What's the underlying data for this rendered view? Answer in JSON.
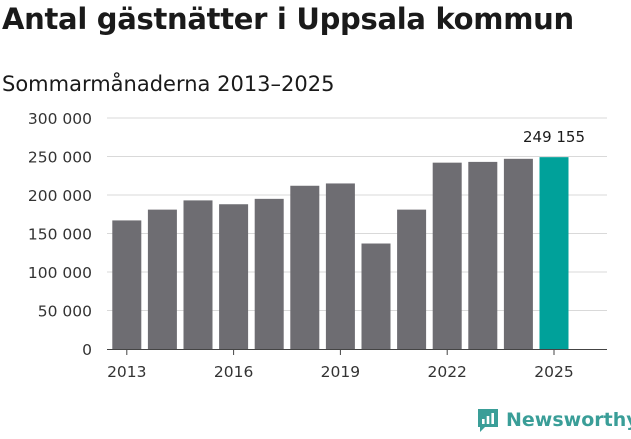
{
  "title": "Antal gästnätter i Uppsala kommun",
  "subtitle": "Sommarmånaderna 2013–2025",
  "brand": {
    "name": "Newsworthy",
    "color": "#3a9e98"
  },
  "chart_data": {
    "type": "bar",
    "categories": [
      "2013",
      "2014",
      "2015",
      "2016",
      "2017",
      "2018",
      "2019",
      "2020",
      "2021",
      "2022",
      "2023",
      "2024",
      "2025"
    ],
    "values": [
      167000,
      181000,
      193000,
      188000,
      195000,
      212000,
      215000,
      137000,
      181000,
      242000,
      243000,
      247000,
      249155
    ],
    "highlight_index": 12,
    "highlight_label": "249 155",
    "colors": {
      "bar": "#6e6d72",
      "highlight": "#00a19a",
      "grid": "#d9d9d9"
    },
    "ylim": [
      0,
      300000
    ],
    "yticks": [
      {
        "value": 0,
        "label": "0"
      },
      {
        "value": 50000,
        "label": "50 000"
      },
      {
        "value": 100000,
        "label": "100 000"
      },
      {
        "value": 150000,
        "label": "150 000"
      },
      {
        "value": 200000,
        "label": "200 000"
      },
      {
        "value": 250000,
        "label": "250 000"
      },
      {
        "value": 300000,
        "label": "300 000"
      }
    ],
    "xtick_labels": [
      "2013",
      "2016",
      "2019",
      "2022",
      "2025"
    ],
    "grid": true
  }
}
